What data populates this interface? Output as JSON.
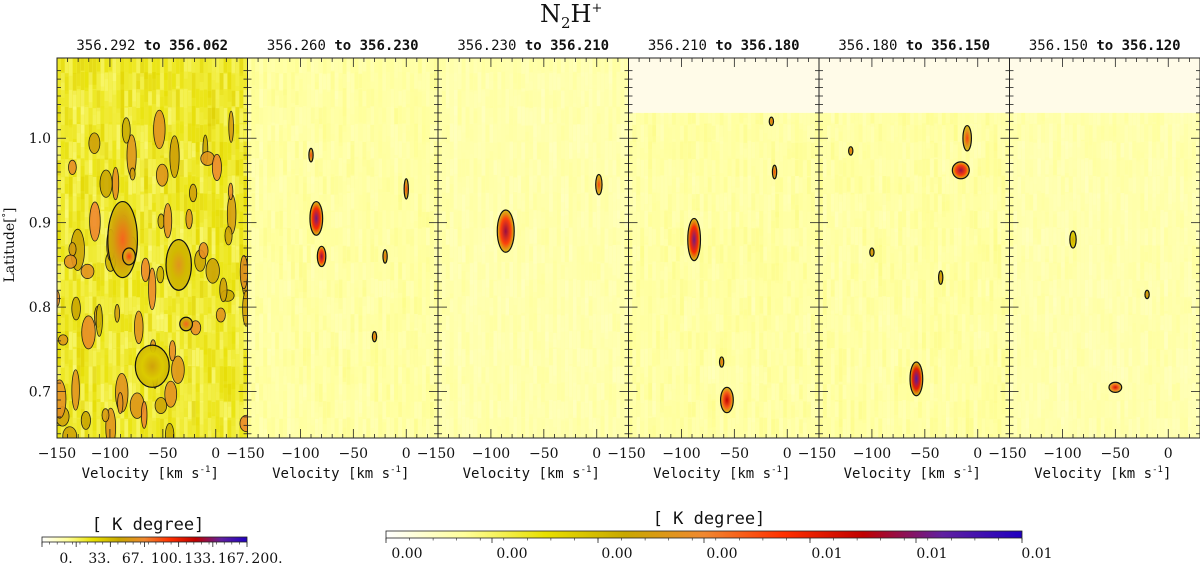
{
  "chart_data": {
    "type": "heatmap",
    "title": "N2H+",
    "title_main": "N",
    "title_sub": "2",
    "title_main2": "H",
    "title_sup": "+",
    "ylabel": "Latitude[°]",
    "ylabel_prefix": "Latitude[",
    "ylabel_degree": "°",
    "ylabel_suffix": "]",
    "xlabel": "Velocity [km s-1]",
    "xlabel_main": "Velocity [km s",
    "xlabel_sup": "-1",
    "xlabel_close": "]",
    "xlim": [
      -150,
      30
    ],
    "ylim": [
      0.645,
      1.095
    ],
    "x_ticks": [
      -150,
      -100,
      -50,
      0
    ],
    "x_tick_labels": [
      "−150",
      "−100",
      "−50",
      "0"
    ],
    "x_tick_labels_inner": [
      "−100",
      "−50",
      "0"
    ],
    "y_ticks": [
      0.7,
      0.8,
      0.9,
      1.0
    ],
    "y_tick_labels": [
      "0.7",
      "0.8",
      "0.9",
      "1.0"
    ],
    "panels": [
      {
        "range_from": "356.292",
        "range_to": "356.062",
        "masked_above": null,
        "background_level": 0.45,
        "blobs": [
          {
            "v": -88,
            "lat": 0.88,
            "sv": 14,
            "sl": 0.045,
            "amp": 0.55
          },
          {
            "v": -82,
            "lat": 0.86,
            "sv": 6,
            "sl": 0.01,
            "amp": 0.6
          },
          {
            "v": -35,
            "lat": 0.85,
            "sv": 12,
            "sl": 0.03,
            "amp": 0.45
          },
          {
            "v": -28,
            "lat": 0.78,
            "sv": 6,
            "sl": 0.008,
            "amp": 0.55
          },
          {
            "v": -60,
            "lat": 0.73,
            "sv": 16,
            "sl": 0.025,
            "amp": 0.4
          }
        ]
      },
      {
        "range_from": "356.260",
        "range_to": "356.230",
        "masked_above": null,
        "background_level": 0.18,
        "blobs": [
          {
            "v": -85,
            "lat": 0.905,
            "sv": 6,
            "sl": 0.02,
            "amp": 0.85
          },
          {
            "v": -80,
            "lat": 0.86,
            "sv": 4,
            "sl": 0.012,
            "amp": 0.8
          },
          {
            "v": -90,
            "lat": 0.98,
            "sv": 2,
            "sl": 0.008,
            "amp": 0.6
          },
          {
            "v": 0,
            "lat": 0.94,
            "sv": 2,
            "sl": 0.012,
            "amp": 0.6
          },
          {
            "v": -20,
            "lat": 0.86,
            "sv": 2,
            "sl": 0.008,
            "amp": 0.55
          },
          {
            "v": -30,
            "lat": 0.765,
            "sv": 2,
            "sl": 0.006,
            "amp": 0.55
          }
        ]
      },
      {
        "range_from": "356.230",
        "range_to": "356.210",
        "masked_above": null,
        "background_level": 0.15,
        "blobs": [
          {
            "v": -86,
            "lat": 0.89,
            "sv": 8,
            "sl": 0.025,
            "amp": 0.8
          },
          {
            "v": 2,
            "lat": 0.945,
            "sv": 3,
            "sl": 0.012,
            "amp": 0.6
          }
        ]
      },
      {
        "range_from": "356.210",
        "range_to": "356.180",
        "masked_above": 1.03,
        "background_level": 0.18,
        "blobs": [
          {
            "v": -88,
            "lat": 0.88,
            "sv": 6,
            "sl": 0.025,
            "amp": 0.85
          },
          {
            "v": -57,
            "lat": 0.69,
            "sv": 6,
            "sl": 0.015,
            "amp": 0.75
          },
          {
            "v": -62,
            "lat": 0.735,
            "sv": 2,
            "sl": 0.006,
            "amp": 0.55
          },
          {
            "v": -12,
            "lat": 0.96,
            "sv": 2,
            "sl": 0.008,
            "amp": 0.6
          },
          {
            "v": -15,
            "lat": 1.02,
            "sv": 2,
            "sl": 0.005,
            "amp": 0.55
          }
        ]
      },
      {
        "range_from": "356.180",
        "range_to": "356.150",
        "masked_above": 1.03,
        "background_level": 0.18,
        "blobs": [
          {
            "v": -58,
            "lat": 0.715,
            "sv": 6,
            "sl": 0.02,
            "amp": 0.9
          },
          {
            "v": -16,
            "lat": 0.962,
            "sv": 8,
            "sl": 0.01,
            "amp": 0.8
          },
          {
            "v": -10,
            "lat": 1.0,
            "sv": 4,
            "sl": 0.015,
            "amp": 0.6
          },
          {
            "v": -120,
            "lat": 0.985,
            "sv": 2,
            "sl": 0.005,
            "amp": 0.55
          },
          {
            "v": -100,
            "lat": 0.865,
            "sv": 2,
            "sl": 0.005,
            "amp": 0.5
          },
          {
            "v": -35,
            "lat": 0.835,
            "sv": 2,
            "sl": 0.008,
            "amp": 0.5
          }
        ]
      },
      {
        "range_from": "356.150",
        "range_to": "356.120",
        "masked_above": 1.03,
        "background_level": 0.15,
        "blobs": [
          {
            "v": -50,
            "lat": 0.705,
            "sv": 6,
            "sl": 0.006,
            "amp": 0.7
          },
          {
            "v": -20,
            "lat": 0.815,
            "sv": 2,
            "sl": 0.005,
            "amp": 0.5
          },
          {
            "v": -90,
            "lat": 0.88,
            "sv": 3,
            "sl": 0.01,
            "amp": 0.4
          }
        ]
      }
    ],
    "panel_to_label": "to",
    "colorbar_small": {
      "title": "[ K degree]",
      "tick_labels": [
        "0.",
        "33.",
        "67.",
        "100.",
        "133.",
        "167.",
        "200."
      ],
      "min": 0,
      "max": 200
    },
    "colorbar_large": {
      "title": "[ K degree]",
      "tick_labels": [
        "0.00",
        "0.00",
        "0.00",
        "0.00",
        "0.01",
        "0.01",
        "0.01"
      ],
      "min": 0,
      "max": 0.01
    },
    "colormap": [
      "#ffffff",
      "#ffff99",
      "#e8e000",
      "#c8a800",
      "#f08830",
      "#ff3000",
      "#c00000",
      "#6020a0",
      "#2000c0"
    ]
  }
}
